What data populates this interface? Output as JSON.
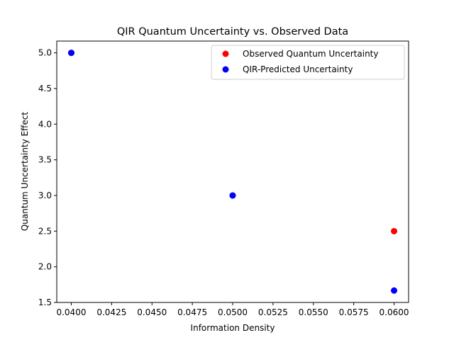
{
  "chart_data": {
    "type": "scatter",
    "title": "QIR Quantum Uncertainty vs. Observed Data",
    "xlabel": "Information Density",
    "ylabel": "Quantum Uncertainty Effect",
    "xlim": [
      0.0391,
      0.0609
    ],
    "ylim": [
      1.5,
      5.165
    ],
    "xticks": [
      0.04,
      0.0425,
      0.045,
      0.0475,
      0.05,
      0.0525,
      0.055,
      0.0575,
      0.06
    ],
    "xtick_labels": [
      "0.0400",
      "0.0425",
      "0.0450",
      "0.0475",
      "0.0500",
      "0.0525",
      "0.0550",
      "0.0575",
      "0.0600"
    ],
    "yticks": [
      1.5,
      2.0,
      2.5,
      3.0,
      3.5,
      4.0,
      4.5,
      5.0
    ],
    "ytick_labels": [
      "1.5",
      "2.0",
      "2.5",
      "3.0",
      "3.5",
      "4.0",
      "4.5",
      "5.0"
    ],
    "grid": false,
    "legend_position": "top-right",
    "series": [
      {
        "name": "Observed Quantum Uncertainty",
        "color": "#ff0000",
        "points": [
          {
            "x": 0.04,
            "y": 5.0
          },
          {
            "x": 0.05,
            "y": 3.0
          },
          {
            "x": 0.06,
            "y": 2.5
          }
        ]
      },
      {
        "name": "QIR-Predicted Uncertainty",
        "color": "#0000ff",
        "points": [
          {
            "x": 0.04,
            "y": 5.0
          },
          {
            "x": 0.05,
            "y": 3.0
          },
          {
            "x": 0.06,
            "y": 1.667
          }
        ]
      }
    ]
  }
}
